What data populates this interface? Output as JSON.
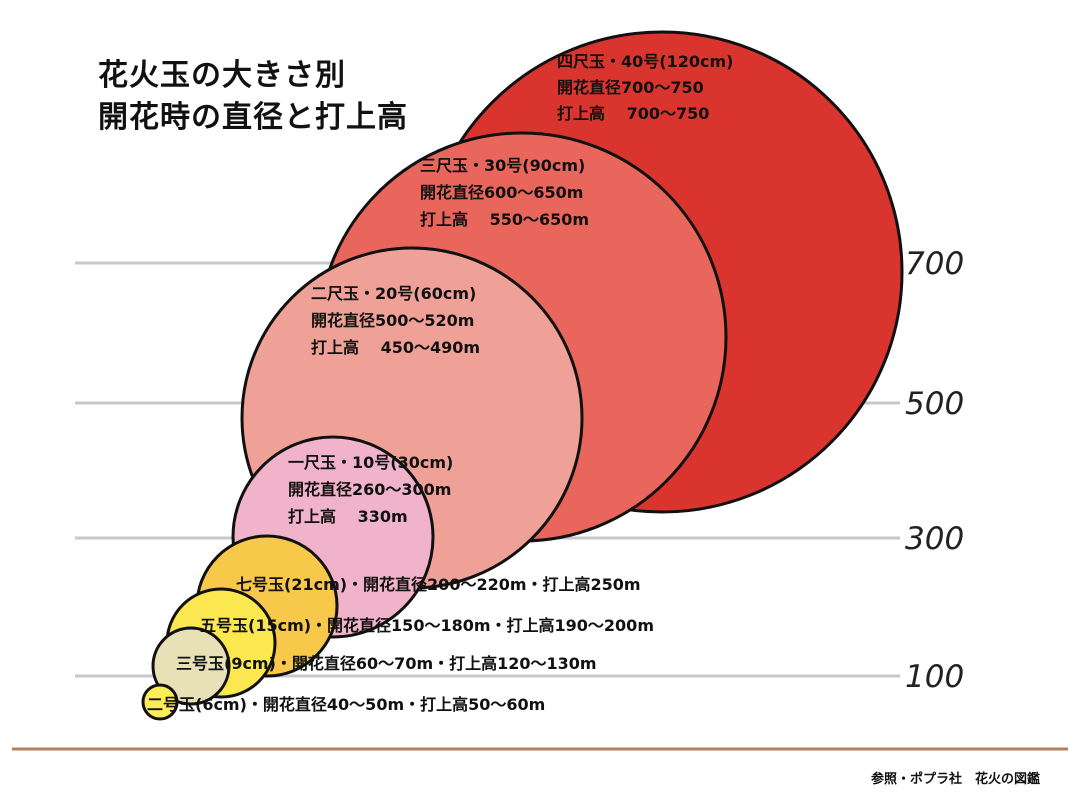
{
  "chart_data": {
    "type": "bubble",
    "title_lines": [
      "花火玉の大きさ別",
      "開花時の直径と打上高"
    ],
    "y_ticks": [
      "700",
      "500",
      "300",
      "100"
    ],
    "colors": {
      "shell_4shaku": "#d9352e",
      "shell_3shaku": "#e8665c",
      "shell_2shaku": "#f0a197",
      "shell_1shaku": "#f1b3c9",
      "shell_7go": "#f7c84a",
      "shell_5go": "#fbe750",
      "shell_3go": "#e8e1b8",
      "shell_2go": "#fbed56",
      "gridline": "#c8c8c8",
      "footer_rule": "#b08060"
    },
    "shells": [
      {
        "name": "四尺玉・40号(120cm)",
        "lines": [
          "四尺玉・40号(120cm)",
          "開花直径700〜750",
          "打上高　 700〜750"
        ],
        "diameter_min": 700,
        "diameter_max": 750,
        "height_min": 700,
        "height_max": 750
      },
      {
        "name": "三尺玉・30号(90cm)",
        "lines": [
          "三尺玉・30号(90cm)",
          "開花直径600〜650m",
          "打上高　 550〜650m"
        ],
        "diameter_min": 600,
        "diameter_max": 650,
        "height_min": 550,
        "height_max": 650
      },
      {
        "name": "二尺玉・20号(60cm)",
        "lines": [
          "二尺玉・20号(60cm)",
          "開花直径500〜520m",
          "打上高　 450〜490m"
        ],
        "diameter_min": 500,
        "diameter_max": 520,
        "height_min": 450,
        "height_max": 490
      },
      {
        "name": "一尺玉・10号(30cm)",
        "lines": [
          "一尺玉・10号(30cm)",
          "開花直径260〜300m",
          "打上高　 330m"
        ],
        "diameter_min": 260,
        "diameter_max": 300,
        "height_min": 330,
        "height_max": 330
      },
      {
        "name": "七号玉(21cm)",
        "lines": [
          "七号玉(21cm)・開花直径200〜220m・打上高250m"
        ],
        "diameter_min": 200,
        "diameter_max": 220,
        "height_min": 250,
        "height_max": 250
      },
      {
        "name": "五号玉(15cm)",
        "lines": [
          "五号玉(15cm)・開花直径150〜180m・打上高190〜200m"
        ],
        "diameter_min": 150,
        "diameter_max": 180,
        "height_min": 190,
        "height_max": 200
      },
      {
        "name": "三号玉(9cm)",
        "lines": [
          "三号玉(9cm)・開花直径60〜70m・打上高120〜130m"
        ],
        "diameter_min": 60,
        "diameter_max": 70,
        "height_min": 120,
        "height_max": 130
      },
      {
        "name": "二号玉(6cm)",
        "lines": [
          "二号玉(6cm)・開花直径40〜50m・打上高50〜60m"
        ],
        "diameter_min": 40,
        "diameter_max": 50,
        "height_min": 50,
        "height_max": 60
      }
    ]
  },
  "footer": {
    "source": "参照・ポプラ社　花火の図鑑"
  }
}
